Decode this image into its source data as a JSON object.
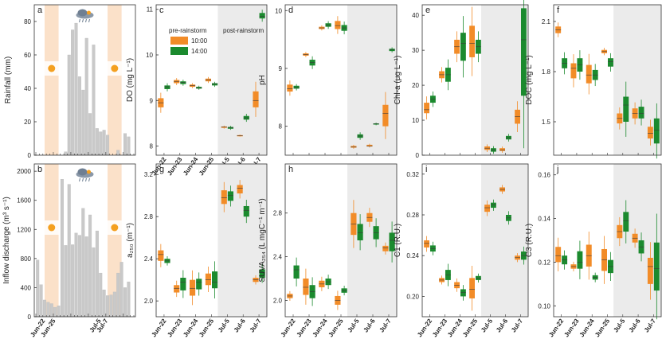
{
  "colors": {
    "orange": "#F28C28",
    "green": "#1B8A2E",
    "bar": "#C9C9C9",
    "shade_orange": "#FBE1C9",
    "shade_gray": "#EBEBEB"
  },
  "legend": {
    "title_pre": "pre-rainstorm",
    "title_post": "post-rainstorm",
    "items": [
      "10:00",
      "14:00"
    ]
  },
  "chart_data": [
    {
      "id": "a",
      "type": "bar",
      "ylabel": "Rainfall (mm)",
      "ylim": [
        0,
        90
      ],
      "yticks": [
        0,
        20,
        40,
        60,
        80
      ],
      "x_day_index": [
        0,
        28
      ],
      "shaded_days": [
        [
          2.5,
          6.5
        ],
        [
          20.5,
          24.5
        ]
      ],
      "values": [
        0,
        0,
        0,
        0,
        0,
        0,
        0,
        0,
        2,
        60,
        75,
        79,
        47,
        39,
        70,
        25,
        66,
        16,
        14,
        15,
        12,
        0,
        0,
        3,
        0,
        13,
        11,
        0
      ],
      "icons": [
        "rain-cloud-icon",
        "sun-icon",
        "sun-icon"
      ]
    },
    {
      "id": "b",
      "type": "bar",
      "ylabel": "Inflow discharge (m³ s⁻¹)",
      "ylim": [
        0,
        2100
      ],
      "yticks": [
        0,
        400,
        800,
        1200,
        1600,
        2000
      ],
      "values": [
        780,
        440,
        230,
        200,
        180,
        130,
        150,
        1890,
        980,
        1820,
        990,
        1150,
        1120,
        1490,
        1100,
        1400,
        950,
        1180,
        600,
        370,
        290,
        300,
        340,
        600,
        750,
        400,
        480,
        0
      ],
      "xticks": [
        {
          "label": "Jun-22",
          "day": 2
        },
        {
          "label": "Jun-25",
          "day": 5
        },
        {
          "label": "Jul-5",
          "day": 18
        },
        {
          "label": "Jul-7",
          "day": 20
        }
      ],
      "icons": [
        "rain-cloud-icon",
        "sun-icon",
        "sun-icon"
      ]
    },
    {
      "id": "c",
      "type": "box",
      "ylabel": "DO (mg L⁻¹)",
      "ylim": [
        7.8,
        11.1
      ],
      "yticks": [
        8,
        9,
        10,
        11
      ],
      "categories": [
        "Jun-22",
        "Jun-23",
        "Jun-24",
        "Jun-25",
        "Jul-5",
        "Jul-6",
        "Jul-7"
      ],
      "series": [
        {
          "name": "10:00",
          "boxes": [
            [
              8.85,
              8.95,
              9.05
            ],
            [
              9.38,
              9.42,
              9.45
            ],
            [
              9.3,
              9.33,
              9.35
            ],
            [
              9.42,
              9.45,
              9.48
            ],
            [
              8.4,
              8.42,
              8.43
            ],
            [
              8.22,
              8.23,
              8.24
            ],
            [
              8.85,
              9.0,
              9.2
            ]
          ]
        },
        {
          "name": "14:00",
          "boxes": [
            [
              9.25,
              9.3,
              9.33
            ],
            [
              9.36,
              9.4,
              9.42
            ],
            [
              9.26,
              9.28,
              9.3
            ],
            [
              9.33,
              9.36,
              9.38
            ],
            [
              8.38,
              8.4,
              8.42
            ],
            [
              8.58,
              8.62,
              8.66
            ],
            [
              10.8,
              10.85,
              10.92
            ]
          ]
        }
      ]
    },
    {
      "id": "d",
      "type": "box",
      "ylabel": "pH",
      "ylim": [
        7.5,
        10.1
      ],
      "yticks": [
        8,
        9,
        10
      ],
      "series": [
        {
          "name": "10:00",
          "boxes": [
            [
              8.6,
              8.65,
              8.72
            ],
            [
              9.22,
              9.24,
              9.26
            ],
            [
              9.68,
              9.7,
              9.72
            ],
            [
              9.68,
              9.74,
              9.82
            ],
            [
              7.63,
              7.64,
              7.66
            ],
            [
              7.65,
              7.66,
              7.68
            ],
            [
              8.0,
              8.22,
              8.37
            ]
          ]
        },
        {
          "name": "14:00",
          "boxes": [
            [
              8.65,
              8.67,
              8.7
            ],
            [
              9.05,
              9.1,
              9.15
            ],
            [
              9.72,
              9.75,
              9.78
            ],
            [
              9.65,
              9.7,
              9.75
            ],
            [
              7.8,
              7.83,
              7.86
            ],
            [
              8.03,
              8.04,
              8.05
            ],
            [
              9.3,
              9.32,
              9.34
            ]
          ]
        }
      ]
    },
    {
      "id": "e",
      "type": "box",
      "ylabel": "Chl-a (μg L⁻¹)",
      "ylim": [
        0,
        43
      ],
      "yticks": [
        0,
        10,
        20,
        30,
        40
      ],
      "series": [
        {
          "name": "10:00",
          "boxes": [
            [
              12,
              13,
              15
            ],
            [
              22,
              23,
              24
            ],
            [
              29,
              31,
              33
            ],
            [
              28,
              32,
              37
            ],
            [
              1.5,
              2,
              2.5
            ],
            [
              1.2,
              1.5,
              2
            ],
            [
              9,
              11,
              13
            ]
          ]
        },
        {
          "name": "14:00",
          "boxes": [
            [
              15,
              16,
              17
            ],
            [
              21,
              23,
              25
            ],
            [
              27,
              32,
              35
            ],
            [
              29,
              31,
              33
            ],
            [
              1,
              1.5,
              2
            ],
            [
              4.5,
              5,
              5.5
            ],
            [
              17,
              33,
              42
            ]
          ]
        }
      ]
    },
    {
      "id": "f",
      "type": "box",
      "ylabel": "DOC (mg L⁻¹)",
      "ylim": [
        1.3,
        2.2
      ],
      "yticks": [
        1.5,
        1.8,
        2.1
      ],
      "series": [
        {
          "name": "10:00",
          "boxes": [
            [
              2.03,
              2.05,
              2.07
            ],
            [
              1.76,
              1.82,
              1.85
            ],
            [
              1.73,
              1.78,
              1.84
            ],
            [
              1.91,
              1.92,
              1.93
            ],
            [
              1.49,
              1.52,
              1.55
            ],
            [
              1.52,
              1.55,
              1.58
            ],
            [
              1.4,
              1.43,
              1.47
            ]
          ]
        },
        {
          "name": "14:00",
          "boxes": [
            [
              1.82,
              1.85,
              1.88
            ],
            [
              1.8,
              1.84,
              1.88
            ],
            [
              1.75,
              1.78,
              1.81
            ],
            [
              1.83,
              1.86,
              1.88
            ],
            [
              1.5,
              1.6,
              1.65
            ],
            [
              1.52,
              1.55,
              1.59
            ],
            [
              1.37,
              1.45,
              1.52
            ]
          ]
        }
      ]
    },
    {
      "id": "g",
      "type": "box",
      "ylabel": "a₂₅₀ (m⁻¹)",
      "ylim": [
        1.85,
        3.3
      ],
      "yticks": [
        2.0,
        2.4,
        2.8,
        3.2
      ],
      "categories": [
        "Jun-22",
        "Jun-23",
        "Jun-24",
        "Jun-25",
        "Jul-5",
        "Jul-6",
        "Jul-7"
      ],
      "series": [
        {
          "name": "10:00",
          "boxes": [
            [
              2.38,
              2.44,
              2.48
            ],
            [
              2.08,
              2.12,
              2.15
            ],
            [
              2.05,
              2.12,
              2.2
            ],
            [
              2.15,
              2.2,
              2.26
            ],
            [
              2.92,
              2.98,
              3.05
            ],
            [
              3.02,
              3.07,
              3.1
            ],
            [
              2.18,
              2.2,
              2.22
            ]
          ]
        },
        {
          "name": "14:00",
          "boxes": [
            [
              2.36,
              2.38,
              2.4
            ],
            [
              2.1,
              2.18,
              2.22
            ],
            [
              2.11,
              2.18,
              2.21
            ],
            [
              2.12,
              2.18,
              2.28
            ],
            [
              2.95,
              3.0,
              3.04
            ],
            [
              2.8,
              2.86,
              2.9
            ],
            [
              2.22,
              2.27,
              2.3
            ]
          ]
        }
      ]
    },
    {
      "id": "h",
      "type": "box",
      "ylabel": "SUVA₂₅₄ (L mgC⁻¹ m⁻¹)",
      "ylim": [
        1.85,
        3.25
      ],
      "yticks": [
        2.0,
        2.4,
        2.8
      ],
      "categories": [
        "Jun-22",
        "Jun-23",
        "Jun-24",
        "Jun-25",
        "Jul-5",
        "Jul-6",
        "Jul-7"
      ],
      "series": [
        {
          "name": "10:00",
          "boxes": [
            [
              2.02,
              2.04,
              2.06
            ],
            [
              2.05,
              2.12,
              2.2
            ],
            [
              2.12,
              2.15,
              2.18
            ],
            [
              1.96,
              2.0,
              2.04
            ],
            [
              2.6,
              2.7,
              2.8
            ],
            [
              2.72,
              2.76,
              2.8
            ],
            [
              2.45,
              2.48,
              2.5
            ]
          ]
        },
        {
          "name": "14:00",
          "boxes": [
            [
              2.2,
              2.28,
              2.32
            ],
            [
              2.02,
              2.08,
              2.14
            ],
            [
              2.14,
              2.17,
              2.2
            ],
            [
              2.07,
              2.09,
              2.11
            ],
            [
              2.55,
              2.62,
              2.7
            ],
            [
              2.56,
              2.62,
              2.68
            ],
            [
              2.45,
              2.55,
              2.62
            ]
          ]
        }
      ]
    },
    {
      "id": "i",
      "type": "box",
      "ylabel": "C1 (R.U.)",
      "ylim": [
        0.18,
        0.33
      ],
      "yticks": [
        0.2,
        0.24,
        0.28,
        0.32
      ],
      "categories": [
        "Jun-22",
        "Jun-23",
        "Jun-24",
        "Jun-25",
        "Jul-5",
        "Jul-6",
        "Jul-7"
      ],
      "series": [
        {
          "name": "10:00",
          "boxes": [
            [
              0.248,
              0.252,
              0.255
            ],
            [
              0.214,
              0.216,
              0.218
            ],
            [
              0.208,
              0.211,
              0.214
            ],
            [
              0.198,
              0.207,
              0.218
            ],
            [
              0.283,
              0.287,
              0.29
            ],
            [
              0.303,
              0.305,
              0.307
            ],
            [
              0.236,
              0.238,
              0.24
            ]
          ]
        },
        {
          "name": "14:00",
          "boxes": [
            [
              0.244,
              0.247,
              0.25
            ],
            [
              0.216,
              0.221,
              0.226
            ],
            [
              0.2,
              0.204,
              0.207
            ],
            [
              0.216,
              0.218,
              0.22
            ],
            [
              0.287,
              0.29,
              0.292
            ],
            [
              0.274,
              0.277,
              0.28
            ],
            [
              0.236,
              0.24,
              0.244
            ]
          ]
        }
      ]
    },
    {
      "id": "j",
      "type": "box",
      "ylabel": "C3 (R.U.)",
      "ylim": [
        0.095,
        0.165
      ],
      "yticks": [
        0.1,
        0.12,
        0.14,
        0.16
      ],
      "categories": [
        "Jun-22",
        "Jun-23",
        "Jun-24",
        "Jun-25",
        "Jul-5",
        "Jul-6",
        "Jul-7"
      ],
      "series": [
        {
          "name": "10:00",
          "boxes": [
            [
              0.12,
              0.123,
              0.127
            ],
            [
              0.117,
              0.118,
              0.119
            ],
            [
              0.118,
              0.123,
              0.128
            ],
            [
              0.116,
              0.121,
              0.126
            ],
            [
              0.131,
              0.134,
              0.137
            ],
            [
              0.129,
              0.131,
              0.133
            ],
            [
              0.11,
              0.118,
              0.122
            ]
          ]
        },
        {
          "name": "14:00",
          "boxes": [
            [
              0.119,
              0.121,
              0.123
            ],
            [
              0.117,
              0.12,
              0.125
            ],
            [
              0.112,
              0.113,
              0.114
            ],
            [
              0.115,
              0.118,
              0.121
            ],
            [
              0.134,
              0.139,
              0.143
            ],
            [
              0.124,
              0.127,
              0.13
            ],
            [
              0.107,
              0.117,
              0.129
            ]
          ]
        }
      ]
    }
  ]
}
